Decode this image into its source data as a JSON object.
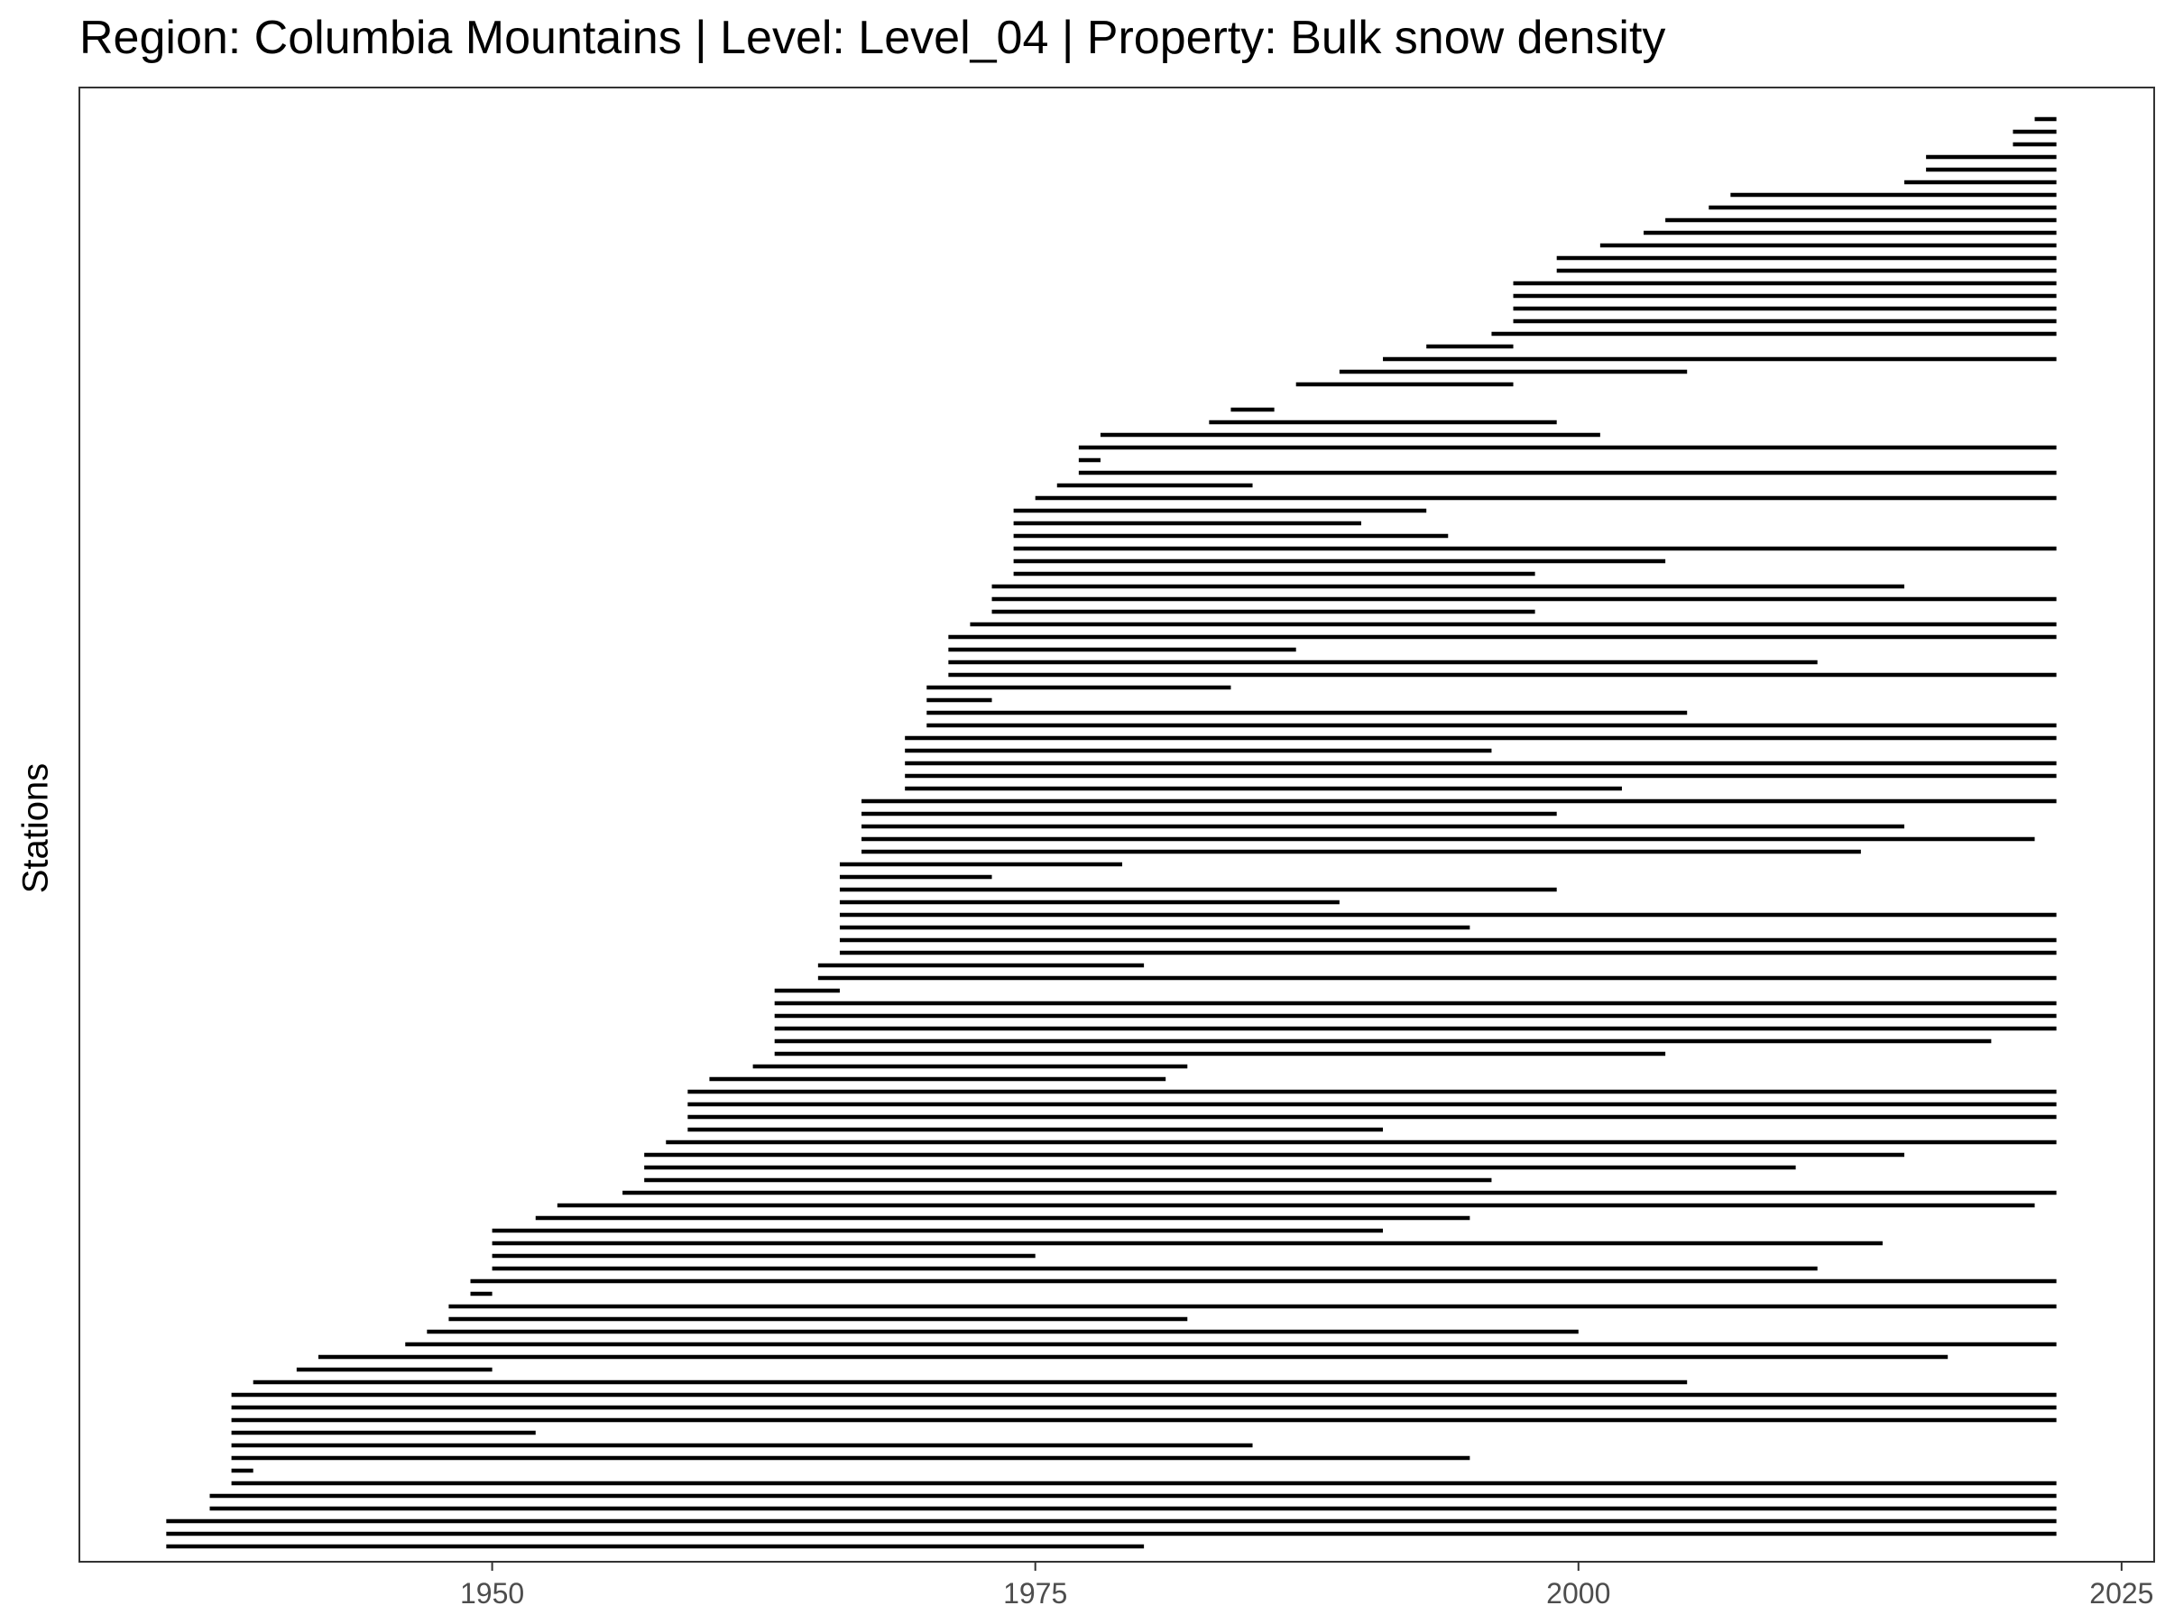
{
  "chart_data": {
    "type": "gantt",
    "title": "Region: Columbia Mountains | Level: Level_04 | Property: Bulk snow density",
    "xlabel": "",
    "ylabel": "Stations",
    "xlim": [
      1931,
      2026.5
    ],
    "x_ticks": [
      1950,
      1975,
      2000,
      2025
    ],
    "grid": false,
    "legend": "none",
    "line_color": "#000000",
    "intervals": [
      [
        2021,
        2022
      ],
      [
        2020,
        2022
      ],
      [
        2020,
        2022
      ],
      [
        2016,
        2022
      ],
      [
        2016,
        2022
      ],
      [
        2015,
        2022
      ],
      [
        2007,
        2022
      ],
      [
        2006,
        2022
      ],
      [
        2004,
        2022
      ],
      [
        2003,
        2022
      ],
      [
        2001,
        2022
      ],
      [
        1999,
        2022
      ],
      [
        1999,
        2022
      ],
      [
        1997,
        2022
      ],
      [
        1997,
        2022
      ],
      [
        1997,
        2022
      ],
      [
        1997,
        2022
      ],
      [
        1996,
        2022
      ],
      [
        1993,
        1997
      ],
      [
        1991,
        2022
      ],
      [
        1989,
        2005
      ],
      [
        1987,
        1997
      ],
      [
        null,
        null
      ],
      [
        1984,
        1986
      ],
      [
        1983,
        1999
      ],
      [
        1978,
        2001
      ],
      [
        1977,
        2022
      ],
      [
        1977,
        1978
      ],
      [
        1977,
        2022
      ],
      [
        1976,
        1985
      ],
      [
        1975,
        2022
      ],
      [
        1974,
        1993
      ],
      [
        1974,
        1990
      ],
      [
        1974,
        1994
      ],
      [
        1974,
        2022
      ],
      [
        1974,
        2004
      ],
      [
        1974,
        1998
      ],
      [
        1973,
        2015
      ],
      [
        1973,
        2022
      ],
      [
        1973,
        1998
      ],
      [
        1972,
        2022
      ],
      [
        1971,
        2022
      ],
      [
        1971,
        1987
      ],
      [
        1971,
        2011
      ],
      [
        1971,
        2022
      ],
      [
        1970,
        1984
      ],
      [
        1970,
        1973
      ],
      [
        1970,
        2005
      ],
      [
        1970,
        2022
      ],
      [
        1969,
        2022
      ],
      [
        1969,
        1996
      ],
      [
        1969,
        2022
      ],
      [
        1969,
        2022
      ],
      [
        1969,
        2002
      ],
      [
        1967,
        2022
      ],
      [
        1967,
        1999
      ],
      [
        1967,
        2015
      ],
      [
        1967,
        2021
      ],
      [
        1967,
        2013
      ],
      [
        1966,
        1979
      ],
      [
        1966,
        1973
      ],
      [
        1966,
        1999
      ],
      [
        1966,
        1989
      ],
      [
        1966,
        2022
      ],
      [
        1966,
        1995
      ],
      [
        1966,
        2022
      ],
      [
        1966,
        2022
      ],
      [
        1965,
        1980
      ],
      [
        1965,
        2022
      ],
      [
        1963,
        1966
      ],
      [
        1963,
        2022
      ],
      [
        1963,
        2022
      ],
      [
        1963,
        2022
      ],
      [
        1963,
        2019
      ],
      [
        1963,
        2004
      ],
      [
        1962,
        1982
      ],
      [
        1960,
        1981
      ],
      [
        1959,
        2022
      ],
      [
        1959,
        2022
      ],
      [
        1959,
        2022
      ],
      [
        1959,
        1991
      ],
      [
        1958,
        2022
      ],
      [
        1957,
        2015
      ],
      [
        1957,
        2010
      ],
      [
        1957,
        1996
      ],
      [
        1956,
        2022
      ],
      [
        1953,
        2021
      ],
      [
        1952,
        1995
      ],
      [
        1950,
        1991
      ],
      [
        1950,
        2014
      ],
      [
        1950,
        1975
      ],
      [
        1950,
        2011
      ],
      [
        1949,
        2022
      ],
      [
        1949,
        1950
      ],
      [
        1948,
        2022
      ],
      [
        1948,
        1982
      ],
      [
        1947,
        2000
      ],
      [
        1946,
        2022
      ],
      [
        1942,
        2017
      ],
      [
        1941,
        1950
      ],
      [
        1939,
        2005
      ],
      [
        1938,
        2022
      ],
      [
        1938,
        2022
      ],
      [
        1938,
        2022
      ],
      [
        1938,
        1952
      ],
      [
        1938,
        1985
      ],
      [
        1938,
        1995
      ],
      [
        1938,
        1939
      ],
      [
        1938,
        2022
      ],
      [
        1937,
        2022
      ],
      [
        1937,
        2022
      ],
      [
        1935,
        2022
      ],
      [
        1935,
        2022
      ],
      [
        1935,
        1980
      ]
    ]
  }
}
